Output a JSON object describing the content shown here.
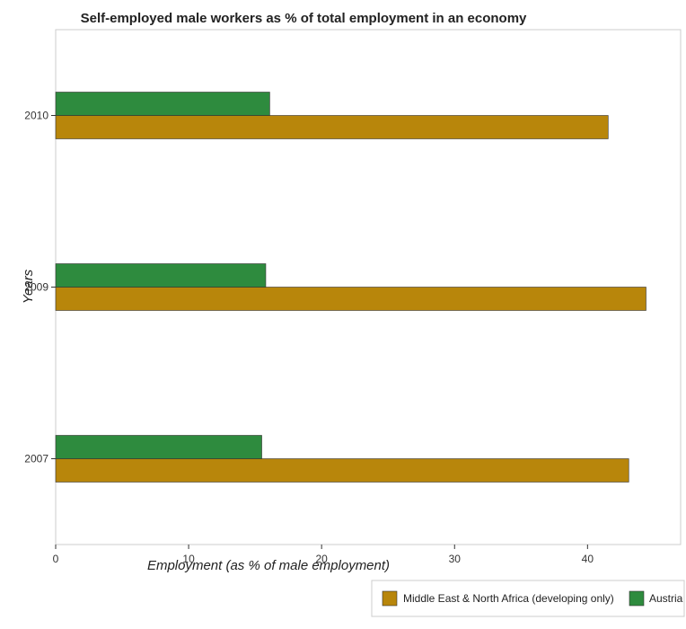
{
  "chart_data": {
    "type": "bar",
    "orientation": "horizontal",
    "title": "Self-employed male workers as % of total employment in an economy",
    "xlabel": "Employment (as % of male employment)",
    "ylabel": "Years",
    "categories": [
      "2007",
      "2009",
      "2010"
    ],
    "xlim": [
      0,
      47
    ],
    "xticks": [
      0,
      10,
      20,
      30,
      40
    ],
    "grid": false,
    "legend_position": "bottom-right",
    "series": [
      {
        "name": "Middle East & North Africa (developing only)",
        "color": "#b8860b",
        "values": [
          43.1,
          44.4,
          41.55
        ]
      },
      {
        "name": "Austria",
        "color": "#2e8b3e",
        "values": [
          15.5,
          15.8,
          16.1
        ]
      }
    ]
  }
}
